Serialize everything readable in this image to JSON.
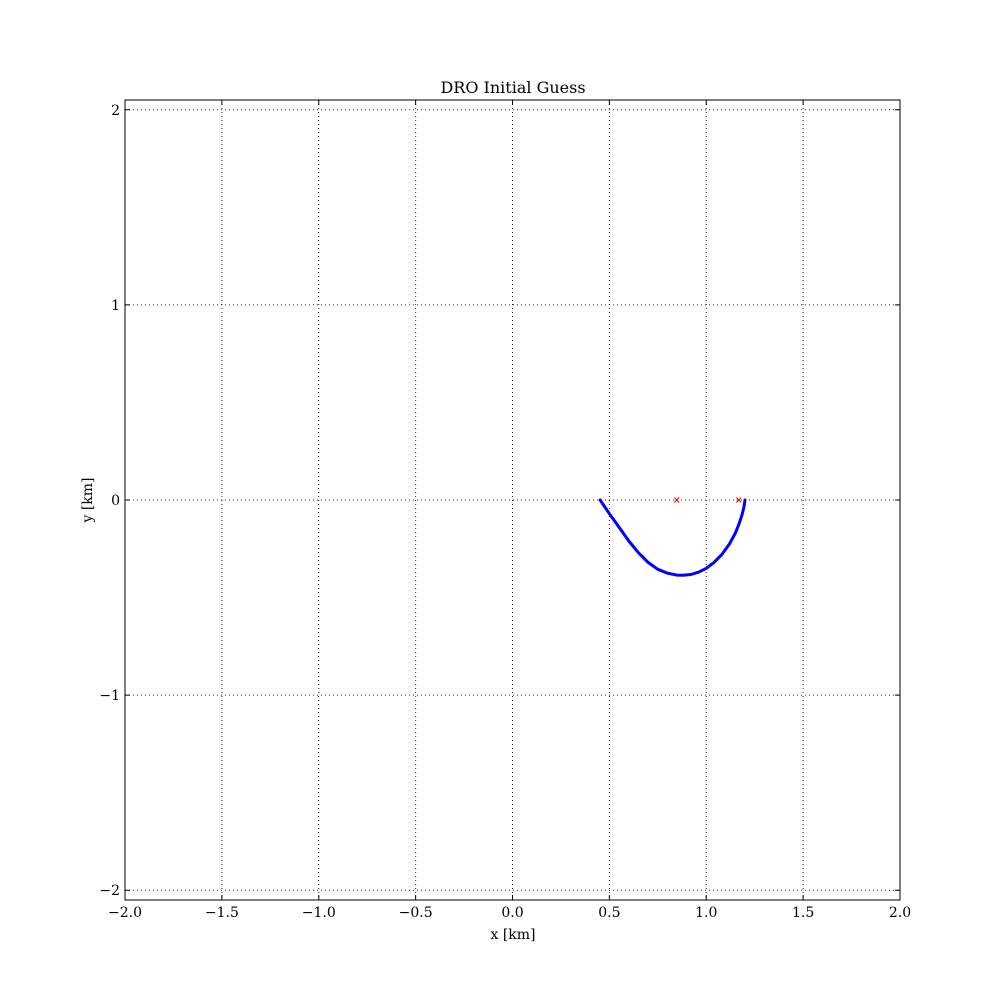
{
  "chart_data": {
    "type": "line",
    "title": "DRO Initial Guess",
    "xlabel": "x [km]",
    "ylabel": "y [km]",
    "xlim": [
      -2.0,
      2.0
    ],
    "ylim": [
      -2.05,
      2.05
    ],
    "grid": true,
    "x_ticks": [
      -2.0,
      -1.5,
      -1.0,
      -0.5,
      0.0,
      0.5,
      1.0,
      1.5,
      2.0
    ],
    "x_tick_labels": [
      "−2.0",
      "−1.5",
      "−1.0",
      "−0.5",
      "0.0",
      "0.5",
      "1.0",
      "1.5",
      "2.0"
    ],
    "y_ticks": [
      -2,
      -1,
      0,
      1,
      2
    ],
    "y_tick_labels": [
      "−2",
      "−1",
      "0",
      "1",
      "2"
    ],
    "series": [
      {
        "color": "#0000ff",
        "style": "line",
        "x": [
          0.452,
          0.5,
          0.55,
          0.6,
          0.65,
          0.7,
          0.75,
          0.8,
          0.85,
          0.88,
          0.92,
          0.96,
          1.0,
          1.04,
          1.08,
          1.12,
          1.15,
          1.17,
          1.185,
          1.195,
          1.2
        ],
        "y": [
          0.0,
          -0.07,
          -0.14,
          -0.21,
          -0.27,
          -0.32,
          -0.355,
          -0.375,
          -0.385,
          -0.386,
          -0.382,
          -0.37,
          -0.35,
          -0.32,
          -0.28,
          -0.225,
          -0.17,
          -0.12,
          -0.075,
          -0.035,
          0.0
        ]
      },
      {
        "color": "#ff0000",
        "style": "marker",
        "marker": "x",
        "x": [
          0.848,
          1.168
        ],
        "y": [
          0.0,
          0.0
        ]
      }
    ]
  }
}
